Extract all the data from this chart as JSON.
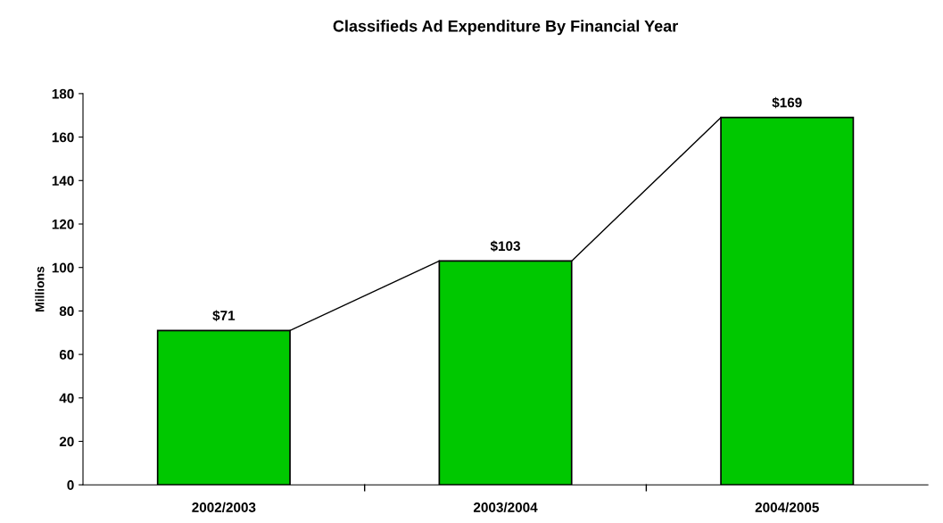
{
  "chart_data": {
    "type": "bar",
    "title": "Classifieds Ad Expenditure By Financial Year",
    "ylabel": "Millions",
    "categories": [
      "2002/2003",
      "2003/2004",
      "2004/2005"
    ],
    "values": [
      71,
      103,
      169
    ],
    "value_labels": [
      "$71",
      "$103",
      "$169"
    ],
    "color": "#00c800",
    "ylim": [
      0,
      180
    ],
    "yticks": [
      0,
      20,
      40,
      60,
      80,
      100,
      120,
      140,
      160,
      180
    ],
    "grid": false,
    "legend": false
  }
}
